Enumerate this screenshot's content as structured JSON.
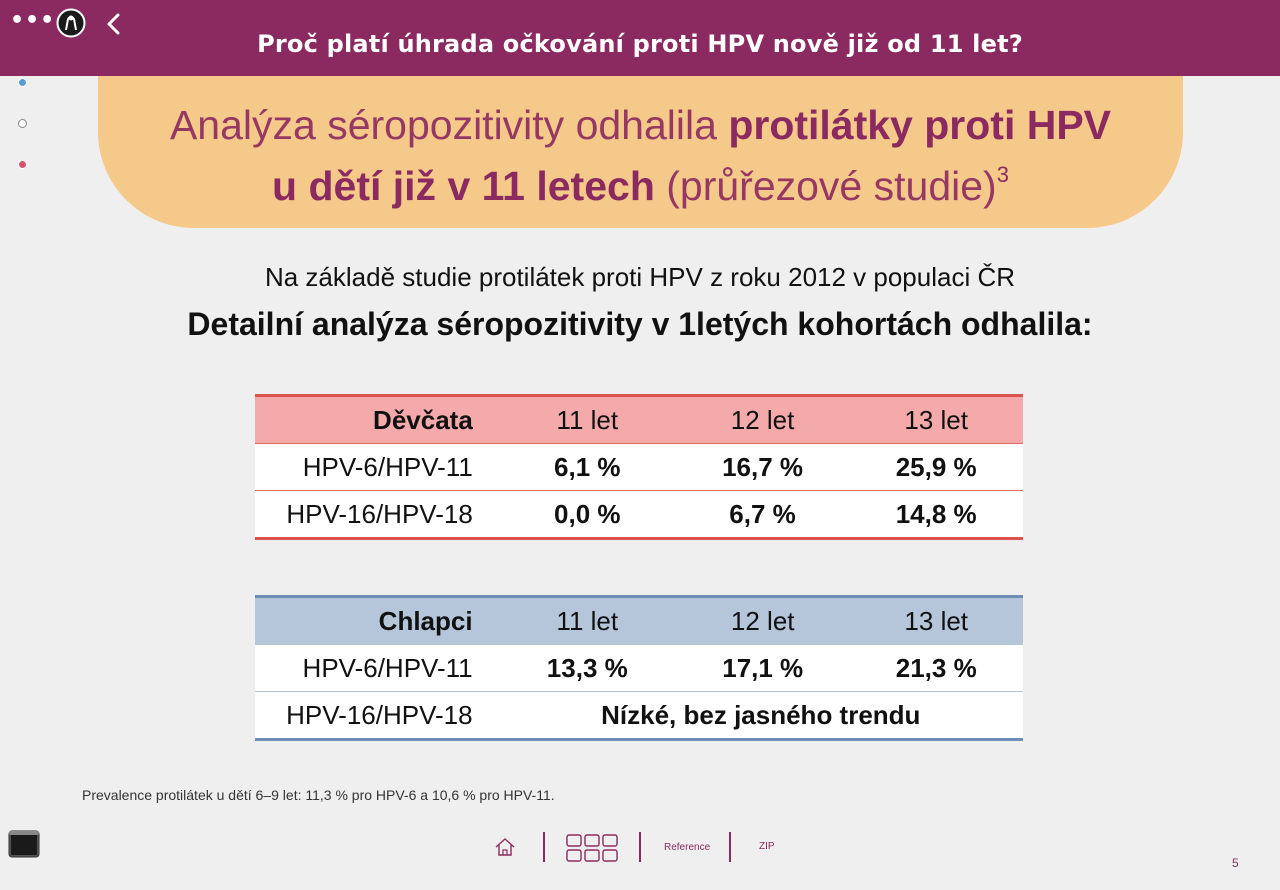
{
  "header": {
    "title": "Proč platí úhrada očkování proti HPV nově již od 11 let?",
    "menu_label": "•••"
  },
  "side_nav": {
    "dots": [
      {
        "color": "#5b9bd5",
        "state": "filled"
      },
      {
        "color": "#888888",
        "state": "outline"
      },
      {
        "color": "#d9536f",
        "state": "filled"
      }
    ]
  },
  "banner": {
    "line1_light": "Analýza séropozitivity odhalila ",
    "line1_bold": "protilátky proti HPV",
    "line2_bold": "u dětí již v 11 letech",
    "line2_light": " (průřezové studie)",
    "line2_sup": "3"
  },
  "intro": {
    "subtitle": "Na základě studie protilátek proti HPV z roku 2012 v populaci ČR",
    "heading": "Detailní analýza séropozitivity v 1letých kohortách odhalila:"
  },
  "girls_table": {
    "header": [
      "Děvčata",
      "11 let",
      "12 let",
      "13 let"
    ],
    "rows": [
      {
        "label": "HPV-6/HPV-11",
        "values": [
          "6,1 %",
          "16,7 %",
          "25,9 %"
        ]
      },
      {
        "label": "HPV-16/HPV-18",
        "values": [
          "0,0 %",
          "6,7 %",
          "14,8 %"
        ]
      }
    ]
  },
  "boys_table": {
    "header": [
      "Chlapci",
      "11 let",
      "12 let",
      "13 let"
    ],
    "rows": [
      {
        "label": "HPV-6/HPV-11",
        "values": [
          "13,3 %",
          "17,1 %",
          "21,3 %"
        ]
      },
      {
        "label": "HPV-16/HPV-18",
        "merged_value": "Nízké, bez jasného trendu"
      }
    ]
  },
  "footnote": "Prevalence protilátek u dětí 6–9 let: 11,3 % pro HPV-6 a 10,6 % pro HPV-11.",
  "bottom_nav": {
    "home_icon": "home-icon",
    "grid_icon": "grid-icon",
    "reference_label": "Reference",
    "zip_label": "ZIP"
  },
  "page_number": "5",
  "colors": {
    "brand": "#8b2a60",
    "banner": "#f5c98a",
    "girls_header": "#f4aaaa",
    "girls_line": "#d9534f",
    "boys_header": "#b6c6da",
    "boys_line": "#6d8fb5"
  }
}
